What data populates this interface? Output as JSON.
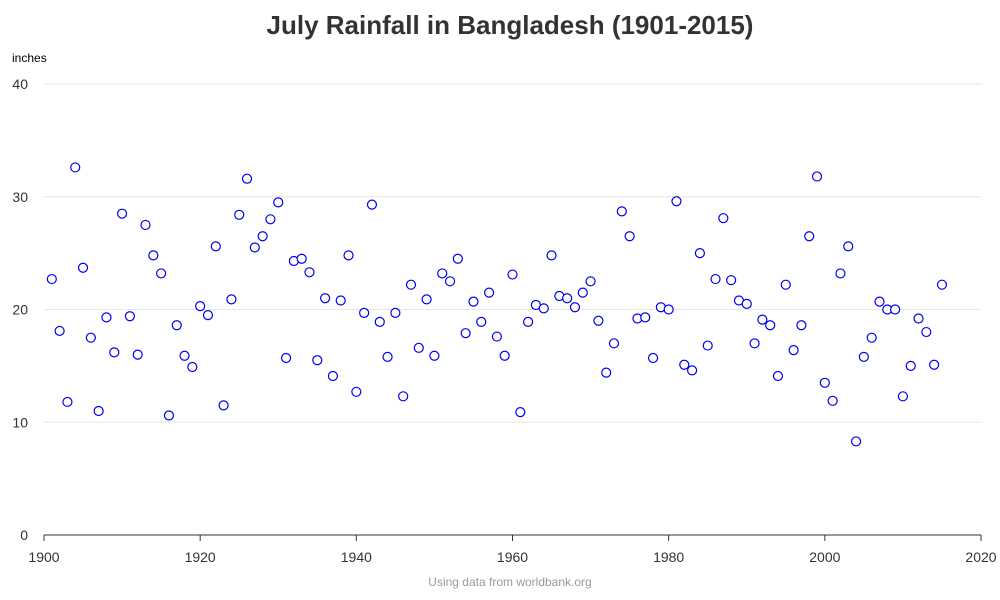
{
  "chart_data": {
    "type": "scatter",
    "title": "July Rainfall in Bangladesh (1901-2015)",
    "ylabel": "inches",
    "xlabel": "",
    "xlim": [
      1900,
      2020
    ],
    "ylim": [
      0,
      40
    ],
    "x_ticks": [
      1900,
      1920,
      1940,
      1960,
      1980,
      2000,
      2020
    ],
    "y_ticks": [
      0,
      10,
      20,
      30,
      40
    ],
    "grid": "horizontal",
    "legend": "none",
    "marker_color": "#0000ee",
    "source_note": "Using data from worldbank.org",
    "series": [
      {
        "x": [
          1901,
          1902,
          1903,
          1904,
          1905,
          1906,
          1907,
          1908,
          1909,
          1910,
          1911,
          1912,
          1913,
          1914,
          1915,
          1916,
          1917,
          1918,
          1919,
          1920,
          1921,
          1922,
          1923,
          1924,
          1925,
          1926,
          1927,
          1928,
          1929,
          1930,
          1931,
          1932,
          1933,
          1934,
          1935,
          1936,
          1937,
          1938,
          1939,
          1940,
          1941,
          1942,
          1943,
          1944,
          1945,
          1946,
          1947,
          1948,
          1949,
          1950,
          1951,
          1952,
          1953,
          1954,
          1955,
          1956,
          1957,
          1958,
          1959,
          1960,
          1961,
          1962,
          1963,
          1964,
          1965,
          1966,
          1967,
          1968,
          1969,
          1970,
          1971,
          1972,
          1973,
          1974,
          1975,
          1976,
          1977,
          1978,
          1979,
          1980,
          1981,
          1982,
          1983,
          1984,
          1985,
          1986,
          1987,
          1988,
          1989,
          1990,
          1991,
          1992,
          1993,
          1994,
          1995,
          1996,
          1997,
          1998,
          1999,
          2000,
          2001,
          2002,
          2003,
          2004,
          2005,
          2006,
          2007,
          2008,
          2009,
          2010,
          2011,
          2012,
          2013,
          2014,
          2015
        ],
        "y": [
          22.7,
          18.1,
          11.8,
          32.6,
          23.7,
          17.5,
          11.0,
          19.3,
          16.2,
          28.5,
          19.4,
          16.0,
          27.5,
          24.8,
          23.2,
          10.6,
          18.6,
          15.9,
          14.9,
          20.3,
          19.5,
          25.6,
          11.5,
          20.9,
          28.4,
          31.6,
          25.5,
          26.5,
          28.0,
          29.5,
          15.7,
          24.3,
          24.5,
          23.3,
          15.5,
          21.0,
          14.1,
          20.8,
          24.8,
          12.7,
          19.7,
          29.3,
          18.9,
          15.8,
          19.7,
          12.3,
          22.2,
          16.6,
          20.9,
          15.9,
          23.2,
          22.5,
          24.5,
          17.9,
          20.7,
          18.9,
          21.5,
          17.6,
          15.9,
          23.1,
          10.9,
          18.9,
          20.4,
          20.1,
          24.8,
          21.2,
          21.0,
          20.2,
          21.5,
          22.5,
          19.0,
          14.4,
          17.0,
          28.7,
          26.5,
          19.2,
          19.3,
          15.7,
          20.2,
          20.0,
          29.6,
          15.1,
          14.6,
          25.0,
          16.8,
          22.7,
          28.1,
          22.6,
          20.8,
          20.5,
          17.0,
          19.1,
          18.6,
          14.1,
          22.2,
          16.4,
          18.6,
          26.5,
          31.8,
          13.5,
          11.9,
          23.2,
          25.6,
          8.3,
          15.8,
          17.5,
          20.7,
          20.0,
          20.0,
          12.3,
          15.0,
          19.2,
          18.0,
          15.1,
          22.2
        ]
      }
    ]
  }
}
